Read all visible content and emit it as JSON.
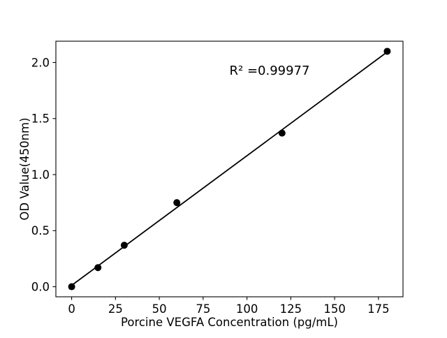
{
  "chart_data": {
    "type": "scatter",
    "title": "",
    "xlabel": "Porcine VEGFA Concentration (pg/mL)",
    "ylabel": "OD Value(450nm)",
    "x": [
      0,
      15,
      30,
      60,
      120,
      180
    ],
    "y": [
      0.0,
      0.17,
      0.37,
      0.75,
      1.37,
      2.1
    ],
    "fit_line": {
      "x": [
        0,
        180
      ],
      "y": [
        0.012,
        2.094
      ],
      "r_squared": 0.99977
    },
    "annotation": {
      "text": "R² =0.99977",
      "x": 90,
      "y": 1.93
    },
    "xticks": [
      0,
      25,
      50,
      75,
      100,
      125,
      150,
      175
    ],
    "xtick_labels": [
      "0",
      "25",
      "50",
      "75",
      "100",
      "125",
      "150",
      "175"
    ],
    "yticks": [
      0.0,
      0.5,
      1.0,
      1.5,
      2.0
    ],
    "ytick_labels": [
      "0.0",
      "0.5",
      "1.0",
      "1.5",
      "2.0"
    ],
    "xlim": [
      -9,
      189
    ],
    "ylim": [
      -0.09,
      2.19
    ],
    "grid": false,
    "legend": null,
    "colors": {
      "marker": "#000000",
      "line": "#000000",
      "text": "#000000",
      "spine": "#000000",
      "background": "#ffffff"
    }
  }
}
